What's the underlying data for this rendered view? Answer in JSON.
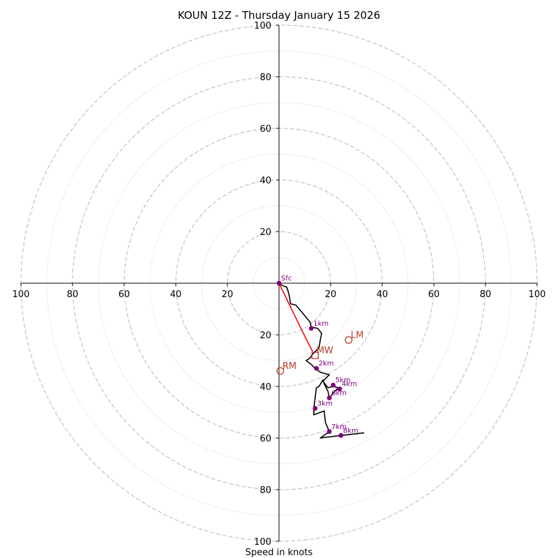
{
  "chart_data": {
    "type": "hodograph",
    "title": "KOUN 12Z - Thursday January 15 2026",
    "xlabel": "Speed in knots",
    "units": "knots",
    "max_speed": 100,
    "ring_major": [
      20,
      40,
      60,
      80,
      100
    ],
    "ring_minor": [
      10,
      30,
      50,
      70,
      90
    ],
    "x_tick_labels": [
      "100",
      "80",
      "60",
      "40",
      "20",
      "20",
      "40",
      "60",
      "80",
      "100"
    ],
    "x_tick_values": [
      -100,
      -80,
      -60,
      -40,
      -20,
      20,
      40,
      60,
      80,
      100
    ],
    "y_tick_labels": [
      "100",
      "80",
      "60",
      "40",
      "20",
      "20",
      "40",
      "60",
      "80",
      "100"
    ],
    "y_tick_values": [
      100,
      80,
      60,
      40,
      20,
      -20,
      -40,
      -60,
      -80,
      -100
    ],
    "trace": {
      "color": "#000000",
      "points": [
        [
          0,
          0
        ],
        [
          1.5,
          -1
        ],
        [
          3,
          -1.5
        ],
        [
          3.5,
          -3
        ],
        [
          4,
          -5
        ],
        [
          4.5,
          -8
        ],
        [
          6.5,
          -8.5
        ],
        [
          9.5,
          -12
        ],
        [
          12,
          -15
        ],
        [
          12.5,
          -17
        ],
        [
          15,
          -17.5
        ],
        [
          16.5,
          -19.5
        ],
        [
          16,
          -22
        ],
        [
          15.5,
          -25
        ],
        [
          13,
          -27.5
        ],
        [
          12,
          -29
        ],
        [
          10.5,
          -30
        ],
        [
          12.5,
          -31.5
        ],
        [
          14,
          -33
        ],
        [
          16,
          -34.5
        ],
        [
          19.5,
          -35.5
        ],
        [
          18.5,
          -36.5
        ],
        [
          17,
          -38
        ],
        [
          19,
          -40.5
        ],
        [
          21,
          -40
        ],
        [
          23,
          -40.5
        ],
        [
          21.5,
          -42
        ],
        [
          19.5,
          -44.5
        ],
        [
          19,
          -42
        ],
        [
          17.5,
          -39
        ],
        [
          17,
          -37.5
        ],
        [
          15.5,
          -40
        ],
        [
          14.5,
          -40.5
        ],
        [
          14,
          -44.5
        ],
        [
          13.5,
          -48.5
        ],
        [
          13.5,
          -51
        ],
        [
          17.5,
          -49.5
        ],
        [
          18,
          -54
        ],
        [
          19.5,
          -57.5
        ],
        [
          16,
          -60
        ],
        [
          24,
          -59
        ],
        [
          33,
          -58
        ]
      ]
    },
    "height_markers": [
      {
        "label": "Sfc",
        "u": 0,
        "v": 0
      },
      {
        "label": "1km",
        "u": 12.5,
        "v": -17.5
      },
      {
        "label": "2km",
        "u": 14.5,
        "v": -33
      },
      {
        "label": "3km",
        "u": 14,
        "v": -48.5
      },
      {
        "label": "4km",
        "u": 23.5,
        "v": -41
      },
      {
        "label": "5km",
        "u": 21,
        "v": -39.5
      },
      {
        "label": "6km",
        "u": 19.5,
        "v": -44.5
      },
      {
        "label": "7km",
        "u": 19.5,
        "v": -57.5
      },
      {
        "label": "8km",
        "u": 24,
        "v": -59
      }
    ],
    "storm_motion": {
      "color": "#c0392b",
      "mean_wind": {
        "label": "MW",
        "u": 14,
        "v": -28
      },
      "right_mover": {
        "label": "RM",
        "u": 0.5,
        "v": -34
      },
      "left_mover": {
        "label": "LM",
        "u": 27,
        "v": -22
      },
      "shear_line": [
        [
          0,
          0
        ],
        [
          8.5,
          -17.5
        ],
        [
          13,
          -26.5
        ]
      ]
    }
  }
}
